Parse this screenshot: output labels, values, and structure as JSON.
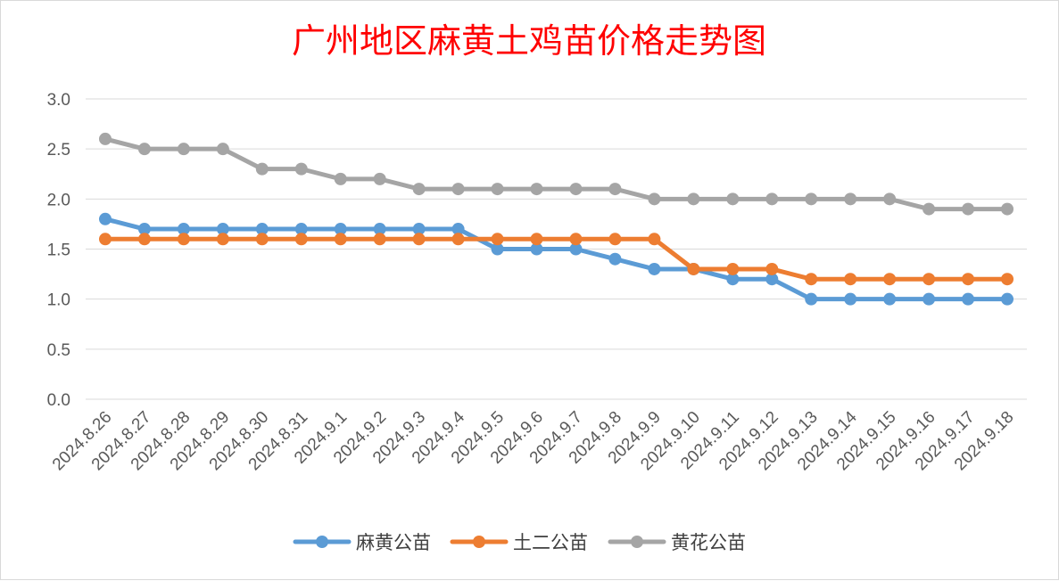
{
  "chart_data": {
    "type": "line",
    "title": "广州地区麻黄土鸡苗价格走势图",
    "categories": [
      "2024.8.26",
      "2024.8.27",
      "2024.8.28",
      "2024.8.29",
      "2024.8.30",
      "2024.8.31",
      "2024.9.1",
      "2024.9.2",
      "2024.9.3",
      "2024.9.4",
      "2024.9.5",
      "2024.9.6",
      "2024.9.7",
      "2024.9.8",
      "2024.9.9",
      "2024.9.10",
      "2024.9.11",
      "2024.9.12",
      "2024.9.13",
      "2024.9.14",
      "2024.9.15",
      "2024.9.16",
      "2024.9.17",
      "2024.9.18"
    ],
    "series": [
      {
        "name": "麻黄公苗",
        "color": "#5b9bd5",
        "values": [
          1.8,
          1.7,
          1.7,
          1.7,
          1.7,
          1.7,
          1.7,
          1.7,
          1.7,
          1.7,
          1.5,
          1.5,
          1.5,
          1.4,
          1.3,
          1.3,
          1.2,
          1.2,
          1.0,
          1.0,
          1.0,
          1.0,
          1.0,
          1.0
        ]
      },
      {
        "name": "土二公苗",
        "color": "#ed7d31",
        "values": [
          1.6,
          1.6,
          1.6,
          1.6,
          1.6,
          1.6,
          1.6,
          1.6,
          1.6,
          1.6,
          1.6,
          1.6,
          1.6,
          1.6,
          1.6,
          1.3,
          1.3,
          1.3,
          1.2,
          1.2,
          1.2,
          1.2,
          1.2,
          1.2
        ]
      },
      {
        "name": "黄花公苗",
        "color": "#a5a5a5",
        "values": [
          2.6,
          2.5,
          2.5,
          2.5,
          2.3,
          2.3,
          2.2,
          2.2,
          2.1,
          2.1,
          2.1,
          2.1,
          2.1,
          2.1,
          2.0,
          2.0,
          2.0,
          2.0,
          2.0,
          2.0,
          2.0,
          1.9,
          1.9,
          1.9
        ]
      }
    ],
    "ylim": [
      0,
      3.0
    ],
    "yticks": [
      "0.0",
      "0.5",
      "1.0",
      "1.5",
      "2.0",
      "2.5",
      "3.0"
    ],
    "grid": true,
    "legend_position": "bottom",
    "gridline_color": "#d9d9d9"
  }
}
